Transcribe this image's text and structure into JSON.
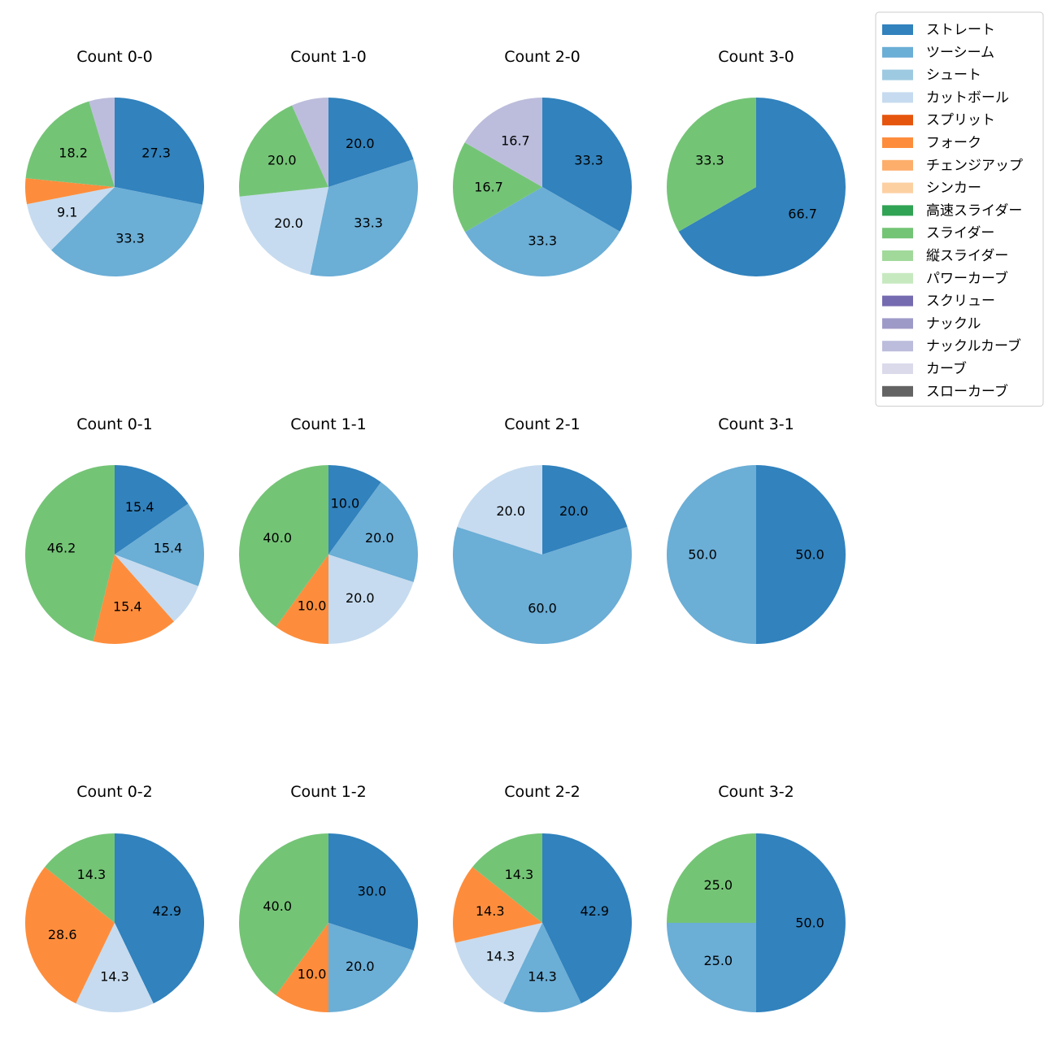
{
  "chart_data": {
    "type": "pie",
    "legend_placement": "top-right",
    "legend": [
      {
        "label": "ストレート",
        "color": "#3182bd"
      },
      {
        "label": "ツーシーム",
        "color": "#6baed6"
      },
      {
        "label": "シュート",
        "color": "#9ecae1"
      },
      {
        "label": "カットボール",
        "color": "#c6dbef"
      },
      {
        "label": "スプリット",
        "color": "#e6550d"
      },
      {
        "label": "フォーク",
        "color": "#fd8d3c"
      },
      {
        "label": "チェンジアップ",
        "color": "#fdae6b"
      },
      {
        "label": "シンカー",
        "color": "#fdd0a2"
      },
      {
        "label": "高速スライダー",
        "color": "#31a354"
      },
      {
        "label": "スライダー",
        "color": "#74c476"
      },
      {
        "label": "縦スライダー",
        "color": "#a1d99b"
      },
      {
        "label": "パワーカーブ",
        "color": "#c7e9c0"
      },
      {
        "label": "スクリュー",
        "color": "#756bb1"
      },
      {
        "label": "ナックル",
        "color": "#9e9ac8"
      },
      {
        "label": "ナックルカーブ",
        "color": "#bcbddc"
      },
      {
        "label": "カーブ",
        "color": "#dadaeb"
      },
      {
        "label": "スローカーブ",
        "color": "#636363"
      }
    ],
    "charts": [
      {
        "title": "Count 0-0",
        "slices": [
          {
            "pitch": "ストレート",
            "value": 27.3
          },
          {
            "pitch": "ツーシーム",
            "value": 33.3
          },
          {
            "pitch": "カットボール",
            "value": 9.1
          },
          {
            "pitch": "フォーク",
            "value": 4.5,
            "label": ""
          },
          {
            "pitch": "スライダー",
            "value": 18.2
          },
          {
            "pitch": "ナックルカーブ",
            "value": 4.5,
            "label": ""
          }
        ]
      },
      {
        "title": "Count 1-0",
        "slices": [
          {
            "pitch": "ストレート",
            "value": 20.0
          },
          {
            "pitch": "ツーシーム",
            "value": 33.3
          },
          {
            "pitch": "カットボール",
            "value": 20.0
          },
          {
            "pitch": "スライダー",
            "value": 20.0
          },
          {
            "pitch": "ナックルカーブ",
            "value": 6.7,
            "label": ""
          }
        ]
      },
      {
        "title": "Count 2-0",
        "slices": [
          {
            "pitch": "ストレート",
            "value": 33.3
          },
          {
            "pitch": "ツーシーム",
            "value": 33.3
          },
          {
            "pitch": "スライダー",
            "value": 16.7
          },
          {
            "pitch": "ナックルカーブ",
            "value": 16.7
          }
        ]
      },
      {
        "title": "Count 3-0",
        "slices": [
          {
            "pitch": "ストレート",
            "value": 66.7
          },
          {
            "pitch": "スライダー",
            "value": 33.3
          }
        ]
      },
      {
        "title": "Count 0-1",
        "slices": [
          {
            "pitch": "ストレート",
            "value": 15.4
          },
          {
            "pitch": "ツーシーム",
            "value": 15.4
          },
          {
            "pitch": "カットボール",
            "value": 7.7,
            "label": ""
          },
          {
            "pitch": "フォーク",
            "value": 15.4
          },
          {
            "pitch": "スライダー",
            "value": 46.2
          }
        ]
      },
      {
        "title": "Count 1-1",
        "slices": [
          {
            "pitch": "ストレート",
            "value": 10.0
          },
          {
            "pitch": "ツーシーム",
            "value": 20.0
          },
          {
            "pitch": "カットボール",
            "value": 20.0
          },
          {
            "pitch": "フォーク",
            "value": 10.0
          },
          {
            "pitch": "スライダー",
            "value": 40.0
          }
        ]
      },
      {
        "title": "Count 2-1",
        "slices": [
          {
            "pitch": "ストレート",
            "value": 20.0
          },
          {
            "pitch": "ツーシーム",
            "value": 60.0
          },
          {
            "pitch": "カットボール",
            "value": 20.0
          }
        ]
      },
      {
        "title": "Count 3-1",
        "slices": [
          {
            "pitch": "ストレート",
            "value": 50.0
          },
          {
            "pitch": "ツーシーム",
            "value": 50.0
          }
        ]
      },
      {
        "title": "Count 0-2",
        "slices": [
          {
            "pitch": "ストレート",
            "value": 42.9
          },
          {
            "pitch": "カットボール",
            "value": 14.3
          },
          {
            "pitch": "フォーク",
            "value": 28.6
          },
          {
            "pitch": "スライダー",
            "value": 14.3
          }
        ]
      },
      {
        "title": "Count 1-2",
        "slices": [
          {
            "pitch": "ストレート",
            "value": 30.0
          },
          {
            "pitch": "ツーシーム",
            "value": 20.0
          },
          {
            "pitch": "フォーク",
            "value": 10.0
          },
          {
            "pitch": "スライダー",
            "value": 40.0
          }
        ]
      },
      {
        "title": "Count 2-2",
        "slices": [
          {
            "pitch": "ストレート",
            "value": 42.9
          },
          {
            "pitch": "ツーシーム",
            "value": 14.3
          },
          {
            "pitch": "カットボール",
            "value": 14.3
          },
          {
            "pitch": "フォーク",
            "value": 14.3
          },
          {
            "pitch": "スライダー",
            "value": 14.3
          }
        ]
      },
      {
        "title": "Count 3-2",
        "slices": [
          {
            "pitch": "ストレート",
            "value": 50.0
          },
          {
            "pitch": "ツーシーム",
            "value": 25.0
          },
          {
            "pitch": "スライダー",
            "value": 25.0
          }
        ]
      }
    ]
  }
}
